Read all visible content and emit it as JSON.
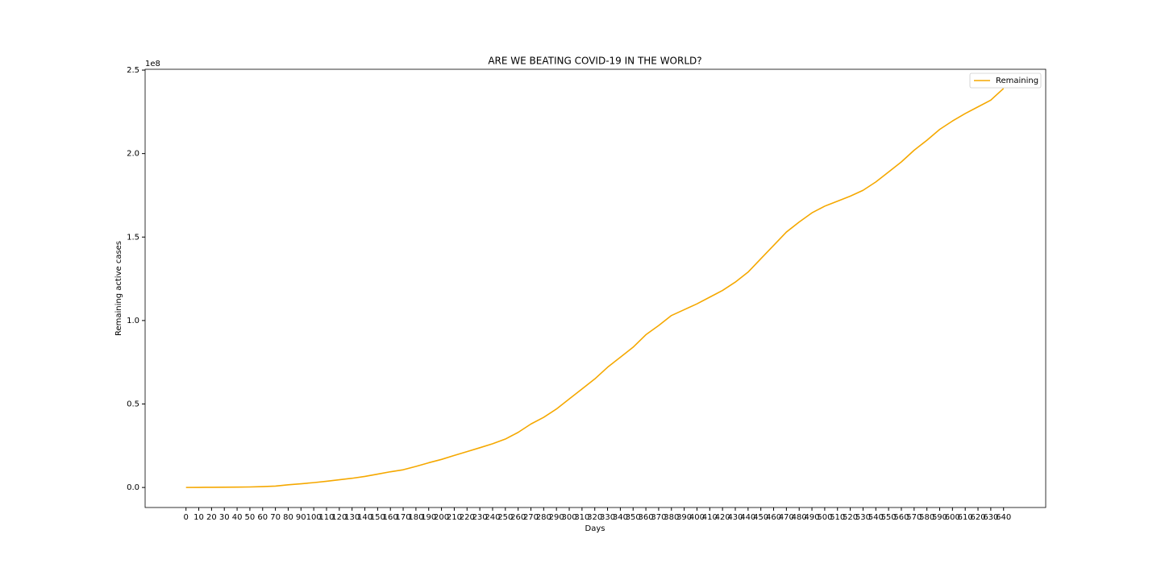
{
  "chart_data": {
    "type": "line",
    "title": "ARE WE BEATING COVID-19 IN THE WORLD?",
    "x_label": "Days",
    "y_label": "Remaining active cases",
    "y_offset_label": "1e8",
    "x": [
      0,
      10,
      20,
      30,
      40,
      50,
      60,
      70,
      80,
      90,
      100,
      110,
      120,
      130,
      140,
      150,
      160,
      170,
      180,
      190,
      200,
      210,
      220,
      230,
      240,
      250,
      260,
      270,
      280,
      290,
      300,
      310,
      320,
      330,
      340,
      350,
      360,
      370,
      380,
      390,
      400,
      410,
      420,
      430,
      440,
      450,
      460,
      470,
      480,
      490,
      500,
      510,
      520,
      530,
      540,
      550,
      560,
      570,
      580,
      590,
      600,
      610,
      620,
      630,
      640
    ],
    "series": [
      {
        "name": "Remaining",
        "color": "#f5a800",
        "values": [
          0,
          0.0005,
          0.001,
          0.0015,
          0.002,
          0.003,
          0.005,
          0.008,
          0.016,
          0.022,
          0.029,
          0.037,
          0.046,
          0.055,
          0.066,
          0.08,
          0.094,
          0.106,
          0.126,
          0.148,
          0.168,
          0.192,
          0.215,
          0.238,
          0.262,
          0.29,
          0.33,
          0.38,
          0.42,
          0.47,
          0.53,
          0.59,
          0.65,
          0.72,
          0.78,
          0.84,
          0.915,
          0.97,
          1.03,
          1.065,
          1.1,
          1.14,
          1.18,
          1.23,
          1.29,
          1.37,
          1.45,
          1.53,
          1.59,
          1.645,
          1.685,
          1.715,
          1.745,
          1.78,
          1.83,
          1.89,
          1.95,
          2.02,
          2.08,
          2.145,
          2.195,
          2.24,
          2.28,
          2.32,
          2.39
        ]
      }
    ],
    "xlim": [
      -32,
      673
    ],
    "ylim": [
      -0.12,
      2.505
    ],
    "xticks": [
      0,
      10,
      20,
      30,
      40,
      50,
      60,
      70,
      80,
      90,
      100,
      110,
      120,
      130,
      140,
      150,
      160,
      170,
      180,
      190,
      200,
      210,
      220,
      230,
      240,
      250,
      260,
      270,
      280,
      290,
      300,
      310,
      320,
      330,
      340,
      350,
      360,
      370,
      380,
      390,
      400,
      410,
      420,
      430,
      440,
      450,
      460,
      470,
      480,
      490,
      500,
      510,
      520,
      530,
      540,
      550,
      560,
      570,
      580,
      590,
      600,
      610,
      620,
      630,
      640
    ],
    "yticks": [
      {
        "value": 0,
        "label": "0.0"
      },
      0.5,
      {
        "value": 1,
        "label": "1.0"
      },
      1.5,
      {
        "value": 2,
        "label": "2.0"
      },
      2.5
    ],
    "grid": false,
    "legend": "upper right"
  }
}
